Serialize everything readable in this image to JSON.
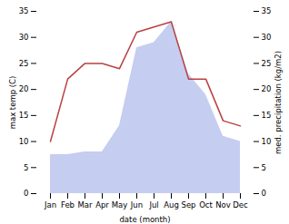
{
  "chart_data": {
    "type": "line",
    "xlabel": "date (month)",
    "ylabel": "max temp (C)",
    "y2label": "med. precipitation (kg/m2)",
    "categories": [
      "Jan",
      "Feb",
      "Mar",
      "Apr",
      "May",
      "Jun",
      "Jul",
      "Aug",
      "Sep",
      "Oct",
      "Nov",
      "Dec"
    ],
    "series": [
      {
        "type": "area",
        "color": "#c5cdf0",
        "axis": "y2",
        "values": [
          7.5,
          7.5,
          8,
          8,
          13,
          28,
          29,
          33,
          23,
          19,
          11,
          10
        ]
      },
      {
        "type": "line",
        "color": "#b94040",
        "values": [
          10,
          22,
          25,
          25,
          24,
          31,
          32,
          33,
          22,
          22,
          14,
          13
        ]
      }
    ],
    "ylim": [
      0,
      35
    ],
    "yticks": [
      0,
      5,
      10,
      15,
      20,
      25,
      30,
      35
    ],
    "y2lim": [
      0,
      35
    ],
    "y2ticks": [
      0,
      5,
      10,
      15,
      20,
      25,
      30,
      35
    ],
    "grid": false
  }
}
